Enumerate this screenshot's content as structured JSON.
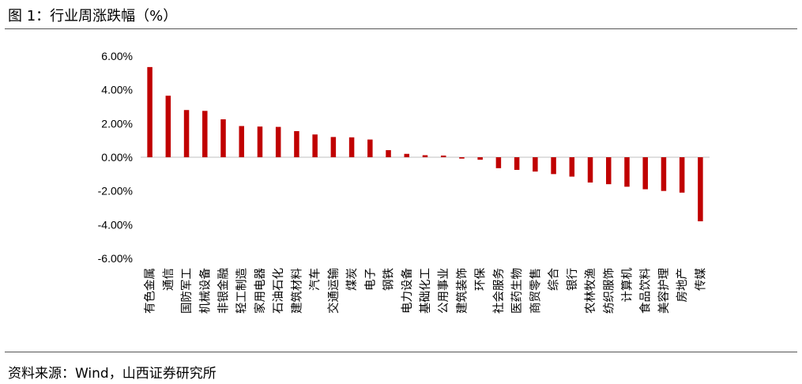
{
  "title": "图 1：行业周涨跌幅（%）",
  "source": "资料来源：Wind，山西证券研究所",
  "colors": {
    "bar": "#C00000",
    "axis": "#bfbfbf"
  },
  "chart_data": {
    "type": "bar",
    "title": "",
    "xlabel": "",
    "ylabel": "",
    "ylim": [
      -6,
      6
    ],
    "yticks": [
      6,
      4,
      2,
      0,
      -2,
      -4,
      -6
    ],
    "ytick_labels": [
      "6.00%",
      "4.00%",
      "2.00%",
      "0.00%",
      "-2.00%",
      "-4.00%",
      "-6.00%"
    ],
    "grid": false,
    "categories": [
      "有色金属",
      "通信",
      "国防军工",
      "机械设备",
      "非银金融",
      "轻工制造",
      "家用电器",
      "石油石化",
      "建筑材料",
      "汽车",
      "交通运输",
      "煤炭",
      "电子",
      "钢铁",
      "电力设备",
      "基础化工",
      "公用事业",
      "建筑装饰",
      "环保",
      "社会服务",
      "医药生物",
      "商贸零售",
      "综合",
      "银行",
      "农林牧渔",
      "纺织服饰",
      "计算机",
      "食品饮料",
      "美容护理",
      "房地产",
      "传媒"
    ],
    "values": [
      5.35,
      3.65,
      2.8,
      2.75,
      2.25,
      1.85,
      1.82,
      1.8,
      1.55,
      1.35,
      1.2,
      1.18,
      1.05,
      0.42,
      0.2,
      0.12,
      0.1,
      -0.08,
      -0.15,
      -0.65,
      -0.75,
      -0.85,
      -1.0,
      -1.15,
      -1.5,
      -1.6,
      -1.75,
      -1.9,
      -2.0,
      -2.1,
      -3.8
    ]
  }
}
